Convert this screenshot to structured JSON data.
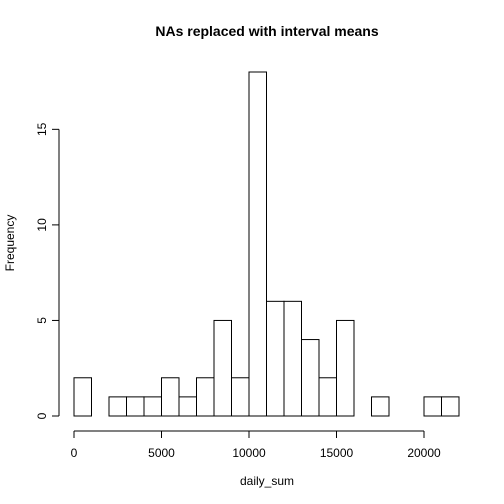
{
  "chart_data": {
    "type": "bar",
    "title": "NAs replaced with interval means",
    "xlabel": "daily_sum",
    "ylabel": "Frequency",
    "xlim": [
      0,
      22000
    ],
    "ylim": [
      0,
      18
    ],
    "bin_width": 1000,
    "bin_starts": [
      0,
      1000,
      2000,
      3000,
      4000,
      5000,
      6000,
      7000,
      8000,
      9000,
      10000,
      11000,
      12000,
      13000,
      14000,
      15000,
      16000,
      17000,
      18000,
      19000,
      20000,
      21000
    ],
    "values": [
      2,
      0,
      1,
      1,
      1,
      2,
      1,
      2,
      5,
      2,
      18,
      6,
      6,
      4,
      2,
      5,
      0,
      1,
      0,
      0,
      1,
      1
    ],
    "x_ticks": [
      0,
      5000,
      10000,
      15000,
      20000
    ],
    "x_tick_labels": [
      "0",
      "5000",
      "10000",
      "15000",
      "20000"
    ],
    "y_ticks": [
      0,
      5,
      10,
      15
    ],
    "y_tick_labels": [
      "0",
      "5",
      "10",
      "15"
    ],
    "grid": false,
    "legend": "none"
  }
}
